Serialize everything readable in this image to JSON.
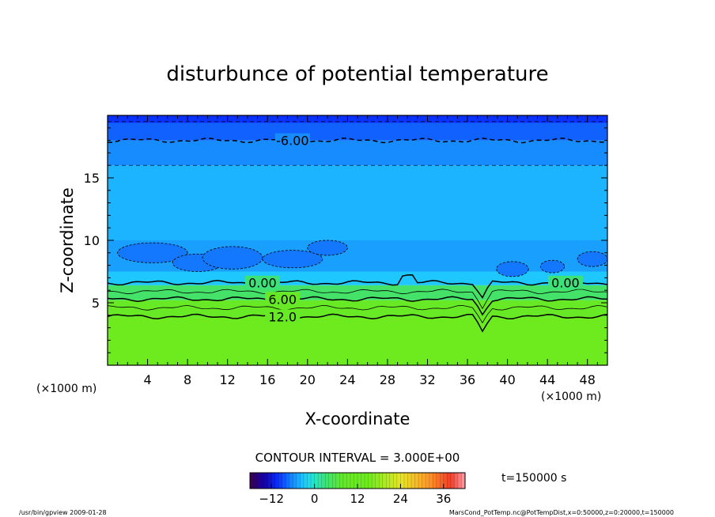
{
  "chart_data": {
    "type": "heatmap",
    "title": "disturbunce of potential temperature",
    "xlabel": "X-coordinate",
    "ylabel": "Z-coordinate",
    "x_unit_left": "(×1000 m)",
    "x_unit_right": "(×1000 m)",
    "xlim": [
      0,
      50
    ],
    "ylim": [
      0,
      20
    ],
    "xticks": [
      4,
      8,
      12,
      16,
      20,
      24,
      28,
      32,
      36,
      40,
      44,
      48
    ],
    "yticks": [
      5,
      10,
      15
    ],
    "layers": [
      {
        "z0": 0,
        "z1": 3.8,
        "value": 15
      },
      {
        "z0": 3.8,
        "z1": 5.2,
        "value": 10
      },
      {
        "z0": 5.2,
        "z1": 6.4,
        "value": 4
      },
      {
        "z0": 6.4,
        "z1": 7.5,
        "value": -3
      },
      {
        "z0": 7.5,
        "z1": 10,
        "value": -5
      },
      {
        "z0": 10,
        "z1": 16,
        "value": -4
      },
      {
        "z0": 16,
        "z1": 18,
        "value": -6
      },
      {
        "z0": 18,
        "z1": 19.4,
        "value": -8
      },
      {
        "z0": 19.4,
        "z1": 20,
        "value": -10
      }
    ],
    "contours": [
      {
        "level": 12,
        "z": 3.9,
        "label": "12.0",
        "label_x": 17.5
      },
      {
        "level": 9,
        "z": 4.6,
        "label": "",
        "label_x": null
      },
      {
        "level": 6,
        "z": 5.3,
        "label": "6.00",
        "label_x": 17.5
      },
      {
        "level": 3,
        "z": 5.9,
        "label": "",
        "label_x": null
      },
      {
        "level": 0,
        "z": 6.6,
        "label": "0.00",
        "label_x": 15.5
      },
      {
        "level": -6,
        "z": 18.0,
        "label": "-6.00",
        "label_x": 18.5
      }
    ],
    "contour_interval_text": "CONTOUR INTERVAL = 3.000E+00",
    "colorbar": {
      "min": -18,
      "max": 42,
      "ticks": [
        -12,
        0,
        12,
        24,
        36
      ],
      "tick_labels": [
        "−12",
        "0",
        "12",
        "24",
        "36"
      ]
    },
    "time_label": "t=150000 s"
  },
  "footer": {
    "left": "/usr/bin/gpview  2009-01-28",
    "right": "MarsCond_PotTemp.nc@PotTempDist,x=0:50000,z=0:20000,t=150000"
  },
  "colors": {
    "top_band": "#0a3cff",
    "upper": "#1a9bff",
    "middle": "#1ec2ff",
    "lower_cyan": "#20d4ff",
    "green": "#66e81e",
    "green_light": "#7af02a"
  }
}
